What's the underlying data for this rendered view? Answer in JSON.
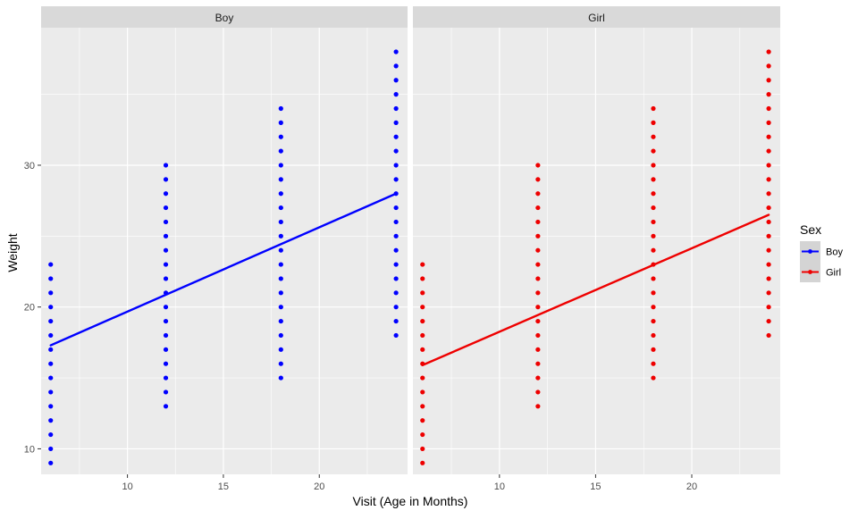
{
  "chart_data": {
    "type": "scatter",
    "panels": [
      {
        "name": "Boy",
        "x": [
          6,
          12,
          18,
          24
        ],
        "y_ranges": [
          [
            9,
            23
          ],
          [
            13,
            30
          ],
          [
            15,
            34
          ],
          [
            18,
            38
          ]
        ],
        "fit": {
          "x": [
            6,
            24
          ],
          "y": [
            17.3,
            28.0
          ]
        }
      },
      {
        "name": "Girl",
        "x": [
          6,
          12,
          18,
          24
        ],
        "y_ranges": [
          [
            9,
            23
          ],
          [
            13,
            30
          ],
          [
            15,
            34
          ],
          [
            18,
            38
          ]
        ],
        "fit": {
          "x": [
            6,
            24
          ],
          "y": [
            15.9,
            26.5
          ]
        }
      }
    ],
    "xlabel": "Visit (Age in Months)",
    "ylabel": "Weight",
    "xlim": [
      5.5,
      24.6
    ],
    "ylim": [
      8.2,
      39.7
    ],
    "x_ticks": [
      10,
      15,
      20
    ],
    "y_ticks": [
      10,
      20,
      30
    ],
    "x_tick_labels": [
      "10",
      "15",
      "20"
    ],
    "y_tick_labels": [
      "10",
      "20",
      "30"
    ],
    "grid": true,
    "legend": {
      "title": "Sex",
      "position": "right",
      "entries": [
        {
          "label": "Boy",
          "color": "#0000ff"
        },
        {
          "label": "Girl",
          "color": "#ee0000"
        }
      ]
    },
    "colors": {
      "Boy": "#0000ff",
      "Girl": "#ee0000"
    }
  }
}
